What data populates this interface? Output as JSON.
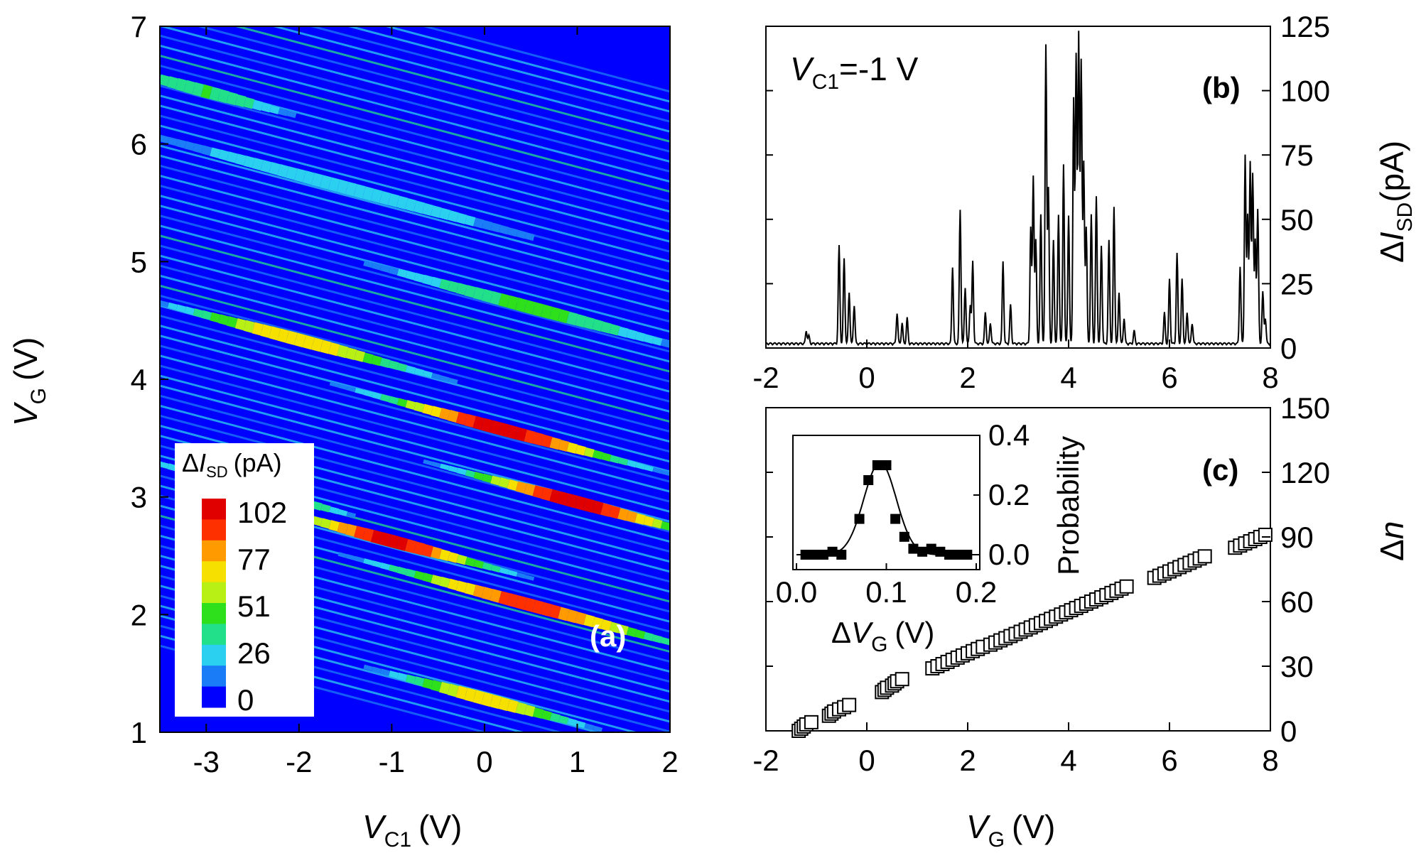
{
  "chart_data": [
    {
      "panel": "(a)",
      "type": "heatmap",
      "x": {
        "symbol": "V",
        "sub": "C1",
        "unit": "(V)",
        "lim": [
          -3.5,
          2
        ],
        "ticks": [
          "-3",
          "-2",
          "-1",
          "0",
          "1",
          "2"
        ]
      },
      "y": {
        "symbol": "V",
        "sub": "G",
        "unit": "(V)",
        "lim": [
          1,
          7
        ],
        "ticks": [
          "1",
          "2",
          "3",
          "4",
          "5",
          "6",
          "7"
        ]
      },
      "colorbar": {
        "title_pre": "Δ",
        "title_symbol": "I",
        "title_sub": "SD",
        "title_unit": "(pA)",
        "ticks": [
          "102",
          "77",
          "51",
          "26",
          "0"
        ],
        "range": [
          0,
          102
        ],
        "colors": [
          "#0000ff",
          "#1a7cf6",
          "#2bd0f0",
          "#22e08a",
          "#2ee01c",
          "#b8f016",
          "#f5e000",
          "#ff9a00",
          "#ff3000",
          "#e00000"
        ]
      },
      "bands": [
        {
          "v0": 4.35,
          "slope": -0.21,
          "intensity": 102,
          "center": 0.2,
          "spread": 1.2
        },
        {
          "v0": 3.9,
          "slope": -0.21,
          "intensity": 102,
          "center": 1.0,
          "spread": 1.1
        },
        {
          "v0": 3.15,
          "slope": -0.21,
          "intensity": 100,
          "center": -1.0,
          "spread": 1.0
        },
        {
          "v0": 2.92,
          "slope": -0.21,
          "intensity": 90,
          "center": 0.5,
          "spread": 1.4
        },
        {
          "v0": 3.28,
          "slope": -0.21,
          "intensity": 80,
          "center": -2.5,
          "spread": 0.8
        },
        {
          "v0": 4.65,
          "slope": -0.21,
          "intensity": 72,
          "center": -2.0,
          "spread": 1.2
        },
        {
          "v0": 2.02,
          "slope": -0.21,
          "intensity": 70,
          "center": 0.0,
          "spread": 0.9
        },
        {
          "v0": 5.45,
          "slope": -0.21,
          "intensity": 42,
          "center": 0.5,
          "spread": 1.5
        },
        {
          "v0": 6.05,
          "slope": -0.21,
          "intensity": 28,
          "center": -1.5,
          "spread": 2.0
        },
        {
          "v0": 6.55,
          "slope": -0.21,
          "intensity": 40,
          "center": -3.0,
          "spread": 0.8
        }
      ]
    },
    {
      "panel": "(b)",
      "type": "line",
      "annotation": {
        "symbol": "V",
        "sub": "C1",
        "text": "=-1 V"
      },
      "x": {
        "lim": [
          -2,
          8
        ],
        "ticks": [
          "-2",
          "0",
          "2",
          "4",
          "6",
          "8"
        ]
      },
      "y": {
        "lim": [
          0,
          125
        ],
        "ticks": [
          "0",
          "25",
          "50",
          "75",
          "100",
          "125"
        ],
        "label_pre": "Δ",
        "label_symbol": "I",
        "label_sub": "SD",
        "label_unit": "(pA)"
      },
      "series": [
        {
          "name": "ΔI_SD",
          "peaks": [
            [
              -1.2,
              5
            ],
            [
              -1.15,
              3
            ],
            [
              -0.55,
              38
            ],
            [
              -0.45,
              33
            ],
            [
              -0.35,
              20
            ],
            [
              -0.25,
              15
            ],
            [
              0.6,
              12
            ],
            [
              0.7,
              8
            ],
            [
              0.8,
              10
            ],
            [
              1.7,
              30
            ],
            [
              1.85,
              52
            ],
            [
              1.95,
              22
            ],
            [
              2.1,
              32
            ],
            [
              2.05,
              15
            ],
            [
              2.35,
              12
            ],
            [
              2.45,
              8
            ],
            [
              2.7,
              32
            ],
            [
              2.85,
              15
            ],
            [
              3.25,
              45
            ],
            [
              3.3,
              65
            ],
            [
              3.35,
              40
            ],
            [
              3.45,
              50
            ],
            [
              3.55,
              116
            ],
            [
              3.6,
              60
            ],
            [
              3.7,
              40
            ],
            [
              3.8,
              50
            ],
            [
              3.9,
              70
            ],
            [
              4.0,
              50
            ],
            [
              4.1,
              95
            ],
            [
              4.15,
              112
            ],
            [
              4.2,
              120
            ],
            [
              4.25,
              110
            ],
            [
              4.3,
              70
            ],
            [
              4.35,
              45
            ],
            [
              4.45,
              50
            ],
            [
              4.55,
              57
            ],
            [
              4.65,
              38
            ],
            [
              4.8,
              40
            ],
            [
              4.9,
              53
            ],
            [
              5.0,
              20
            ],
            [
              5.1,
              10
            ],
            [
              5.3,
              5
            ],
            [
              5.9,
              12
            ],
            [
              6.0,
              25
            ],
            [
              6.15,
              35
            ],
            [
              6.25,
              25
            ],
            [
              6.35,
              12
            ],
            [
              6.45,
              8
            ],
            [
              7.4,
              30
            ],
            [
              7.5,
              73
            ],
            [
              7.55,
              50
            ],
            [
              7.6,
              70
            ],
            [
              7.65,
              66
            ],
            [
              7.7,
              40
            ],
            [
              7.75,
              52
            ],
            [
              7.85,
              20
            ],
            [
              7.9,
              10
            ]
          ]
        }
      ]
    },
    {
      "panel": "(c)",
      "type": "scatter",
      "x": {
        "lim": [
          -2,
          8
        ],
        "ticks": [
          "-2",
          "0",
          "2",
          "4",
          "6",
          "8"
        ],
        "symbol": "V",
        "sub": "G",
        "unit": "(V)"
      },
      "y": {
        "lim": [
          0,
          150
        ],
        "ticks": [
          "0",
          "30",
          "60",
          "90",
          "120",
          "150"
        ],
        "label_pre": "Δ",
        "label_symbol": "n"
      },
      "series": [
        {
          "name": "Δn",
          "x": [
            -1.35,
            -1.3,
            -1.25,
            -1.2,
            -1.1,
            -0.75,
            -0.7,
            -0.65,
            -0.55,
            -0.45,
            -0.35,
            0.3,
            0.35,
            0.4,
            0.5,
            0.55,
            0.6,
            0.7,
            1.3,
            1.4,
            1.5,
            1.6,
            1.7,
            1.8,
            1.9,
            2.0,
            2.1,
            2.2,
            2.3,
            2.45,
            2.55,
            2.65,
            2.75,
            2.85,
            2.95,
            3.05,
            3.15,
            3.25,
            3.35,
            3.45,
            3.55,
            3.65,
            3.75,
            3.85,
            3.95,
            4.05,
            4.15,
            4.25,
            4.35,
            4.45,
            4.55,
            4.65,
            4.75,
            4.85,
            4.95,
            5.05,
            5.15,
            5.7,
            5.8,
            5.9,
            6.0,
            6.1,
            6.2,
            6.3,
            6.4,
            6.5,
            6.6,
            6.7,
            7.3,
            7.4,
            7.5,
            7.6,
            7.7,
            7.8,
            7.9
          ],
          "y": [
            0,
            1,
            2,
            3,
            4,
            7,
            8,
            9,
            10,
            11,
            12,
            18,
            19,
            20,
            21,
            22,
            23,
            24,
            29,
            30,
            31,
            32,
            33,
            34,
            35,
            36,
            37,
            38,
            39,
            40,
            41,
            42,
            43,
            44,
            45,
            46,
            47,
            48,
            49,
            50,
            51,
            52,
            53,
            54,
            55,
            56,
            57,
            58,
            59,
            60,
            61,
            62,
            63,
            64,
            65,
            66,
            67,
            71,
            72,
            73,
            74,
            75,
            76,
            77,
            78,
            79,
            80,
            81,
            85,
            86,
            87,
            88,
            89,
            90,
            91
          ]
        }
      ],
      "inset": {
        "type": "scatter",
        "x": {
          "lim": [
            0,
            0.2
          ],
          "ticks": [
            "0.0",
            "0.1",
            "0.2"
          ],
          "label_pre": "Δ",
          "symbol": "V",
          "sub": "G",
          "unit": "(V)"
        },
        "y": {
          "lim": [
            -0.05,
            0.4
          ],
          "ticks": [
            "0.0",
            "0.2",
            "0.4"
          ],
          "label": "Probability"
        },
        "points": {
          "x": [
            0.01,
            0.02,
            0.03,
            0.04,
            0.05,
            0.07,
            0.08,
            0.09,
            0.1,
            0.11,
            0.12,
            0.13,
            0.14,
            0.15,
            0.16,
            0.17,
            0.18,
            0.19
          ],
          "y": [
            0.0,
            0.0,
            0.0,
            0.01,
            0.0,
            0.12,
            0.25,
            0.3,
            0.3,
            0.12,
            0.06,
            0.02,
            0.01,
            0.02,
            0.01,
            0.0,
            0.0,
            0.0
          ]
        },
        "fit": {
          "type": "gaussian",
          "amplitude": 0.31,
          "center": 0.093,
          "width": 0.018,
          "offset": 0.0
        }
      }
    }
  ]
}
